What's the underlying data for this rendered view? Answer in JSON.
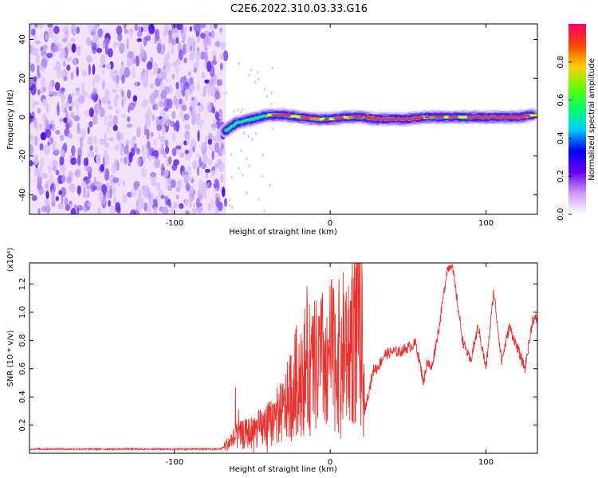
{
  "title": "C2E6.2022.310.03.33.G16",
  "chart_data": [
    {
      "type": "heatmap",
      "title": "C2E6.2022.310.03.33.G16",
      "xlabel": "Height of straight line (km)",
      "ylabel": "Frequency (Hz)",
      "xlim": [
        -193,
        133
      ],
      "ylim": [
        -50,
        48
      ],
      "xticks": [
        -100,
        0,
        100
      ],
      "yticks": [
        -40,
        -20,
        0,
        20,
        40
      ],
      "colorbar": {
        "label": "Normalized spectral amplitude",
        "range": [
          0.0,
          1.0
        ],
        "ticks": [
          "0.0",
          "0.2",
          "0.4",
          "0.6",
          "0.8"
        ],
        "colors": [
          "#ffffff",
          "#cc99ff",
          "#6600ee",
          "#0000ff",
          "#00ccff",
          "#00ff66",
          "#66ff00",
          "#ffcc00",
          "#ff4400",
          "#ff0066"
        ]
      },
      "noise_region_x": [
        -193,
        -67
      ],
      "signal_trace": {
        "x": [
          -67,
          -60,
          -50,
          -40,
          -30,
          -20,
          -10,
          0,
          10,
          20,
          30,
          40,
          50,
          60,
          70,
          80,
          90,
          100,
          110,
          120,
          130
        ],
        "freq_hz": [
          -7,
          -3,
          -1,
          1,
          1,
          0,
          -1,
          -1,
          0,
          0,
          -1,
          -1,
          -1,
          0,
          0,
          0,
          0,
          0,
          0,
          0,
          1
        ]
      }
    },
    {
      "type": "line",
      "xlabel": "Height of straight line (km)",
      "ylabel": "SNR (10 * v/v)",
      "y_multiplier": "(x10⁴)",
      "xlim": [
        -193,
        133
      ],
      "ylim": [
        0,
        1.35
      ],
      "xticks": [
        -100,
        0,
        100
      ],
      "yticks": [
        "0.2",
        "0.4",
        "0.6",
        "0.8",
        "1.0",
        "1.2"
      ],
      "line_color": "#e8312f",
      "series": [
        {
          "x": [
            -193,
            -70,
            -60,
            -50,
            -40,
            -30,
            -20,
            -15,
            -10,
            -5,
            0,
            5,
            10,
            15,
            20,
            22,
            25,
            28,
            30,
            35,
            40,
            45,
            50,
            55,
            60,
            62,
            65,
            70,
            75,
            78,
            80,
            85,
            90,
            95,
            100,
            105,
            110,
            115,
            120,
            125,
            130
          ],
          "values": [
            0.03,
            0.03,
            0.12,
            0.15,
            0.2,
            0.3,
            0.55,
            0.6,
            0.6,
            0.65,
            0.7,
            0.68,
            0.75,
            0.9,
            0.85,
            0.3,
            0.45,
            0.6,
            0.6,
            0.7,
            0.72,
            0.72,
            0.75,
            0.78,
            0.5,
            0.65,
            0.6,
            0.9,
            1.3,
            1.35,
            1.2,
            0.8,
            0.65,
            0.9,
            0.6,
            1.15,
            0.65,
            0.9,
            0.75,
            0.6,
            0.95
          ]
        }
      ]
    }
  ]
}
